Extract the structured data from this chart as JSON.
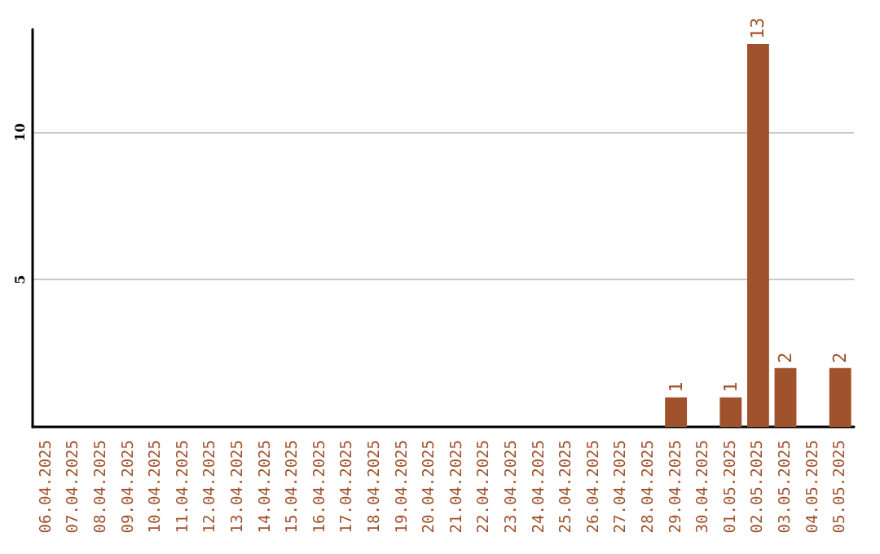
{
  "chart_data": {
    "type": "bar",
    "categories": [
      "06.04.2025",
      "07.04.2025",
      "08.04.2025",
      "09.04.2025",
      "10.04.2025",
      "11.04.2025",
      "12.04.2025",
      "13.04.2025",
      "14.04.2025",
      "15.04.2025",
      "16.04.2025",
      "17.04.2025",
      "18.04.2025",
      "19.04.2025",
      "20.04.2025",
      "21.04.2025",
      "22.04.2025",
      "23.04.2025",
      "24.04.2025",
      "25.04.2025",
      "26.04.2025",
      "27.04.2025",
      "28.04.2025",
      "29.04.2025",
      "30.04.2025",
      "01.05.2025",
      "02.05.2025",
      "03.05.2025",
      "04.05.2025",
      "05.05.2025"
    ],
    "values": [
      0,
      0,
      0,
      0,
      0,
      0,
      0,
      0,
      0,
      0,
      0,
      0,
      0,
      0,
      0,
      0,
      0,
      0,
      0,
      0,
      0,
      0,
      0,
      1,
      0,
      1,
      13,
      2,
      0,
      2
    ],
    "value_labels": [
      null,
      null,
      null,
      null,
      null,
      null,
      null,
      null,
      null,
      null,
      null,
      null,
      null,
      null,
      null,
      null,
      null,
      null,
      null,
      null,
      null,
      null,
      null,
      "1",
      null,
      "1",
      "13",
      "2",
      null,
      "2"
    ],
    "color": "#a0522d",
    "ylim": [
      0,
      13.5
    ],
    "yticks": [
      5,
      10
    ],
    "grid": "y"
  }
}
